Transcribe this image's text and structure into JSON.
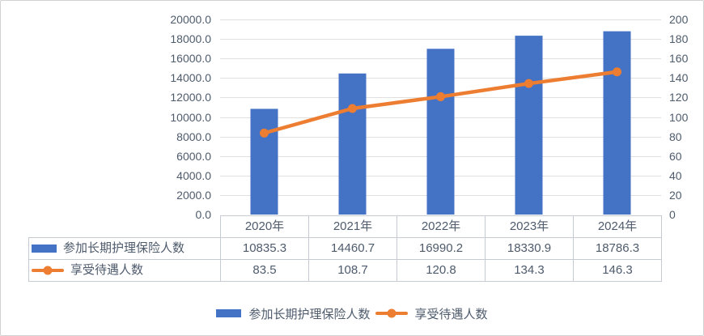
{
  "chart_data": {
    "type": "combo-bar-line",
    "title": "",
    "categories": [
      "2020年",
      "2021年",
      "2022年",
      "2023年",
      "2024年"
    ],
    "series": [
      {
        "name": "参加长期护理保险人数",
        "type": "bar",
        "axis": "left",
        "values": [
          10835.3,
          14460.7,
          16990.2,
          18330.9,
          18786.3
        ],
        "display_values": [
          "10835.3",
          "14460.7",
          "16990.2",
          "18330.9",
          "18786.3"
        ]
      },
      {
        "name": "享受待遇人数",
        "type": "line",
        "axis": "right",
        "values": [
          83.5,
          108.7,
          120.8,
          134.3,
          146.3
        ],
        "display_values": [
          "83.5",
          "108.7",
          "120.8",
          "134.3",
          "146.3"
        ]
      }
    ],
    "left_axis": {
      "min": 0,
      "max": 20000,
      "step": 2000,
      "tick_labels": [
        "0.0",
        "2000.0",
        "4000.0",
        "6000.0",
        "8000.0",
        "10000.0",
        "12000.0",
        "14000.0",
        "16000.0",
        "18000.0",
        "20000.0"
      ]
    },
    "right_axis": {
      "min": 0,
      "max": 200,
      "step": 20,
      "tick_labels": [
        "0",
        "20",
        "40",
        "60",
        "80",
        "100",
        "120",
        "140",
        "160",
        "180",
        "200"
      ]
    },
    "grid": true,
    "legend_position": "bottom",
    "data_table_shown": true
  },
  "colors": {
    "bar": "#4472C4",
    "line": "#ED7D31",
    "text": "#4e5b6c",
    "grid": "#e0e0e0",
    "table_border": "#c5cad3",
    "frame_border": "#d2d2d2"
  }
}
